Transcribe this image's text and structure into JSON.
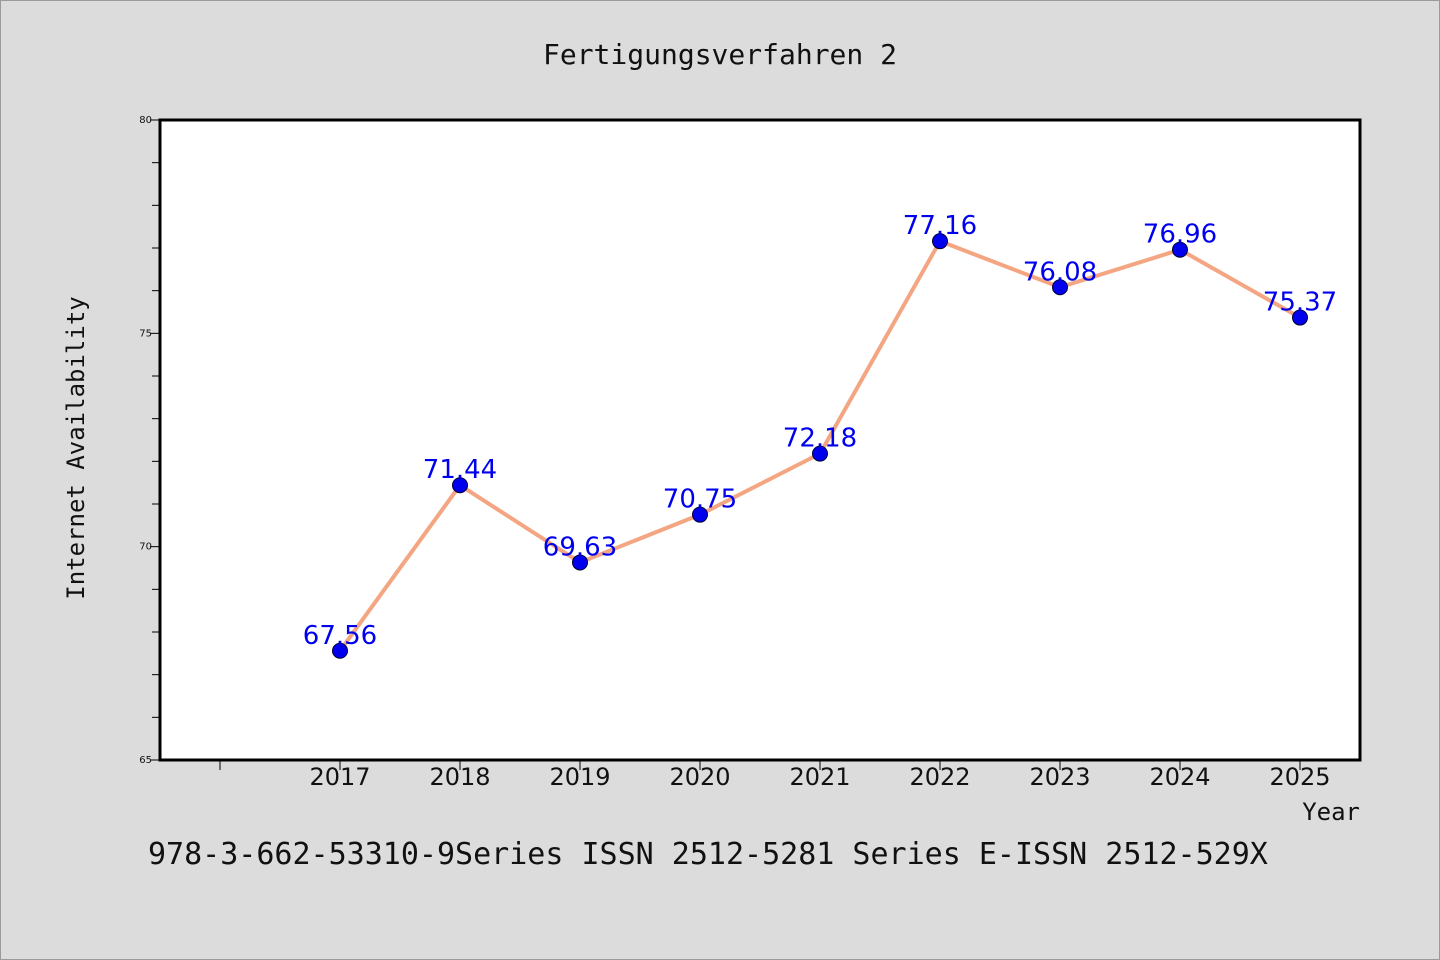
{
  "chart_data": {
    "type": "line",
    "title": "Fertigungsverfahren 2",
    "xlabel": "Year",
    "ylabel": "Internet Availability",
    "categories": [
      "2017",
      "2018",
      "2019",
      "2020",
      "2021",
      "2022",
      "2023",
      "2024",
      "2025"
    ],
    "series": [
      {
        "values": [
          67.56,
          71.44,
          69.63,
          70.75,
          72.18,
          77.16,
          76.08,
          76.96,
          75.37
        ],
        "data_labels": [
          "67.56",
          "71.44",
          "69.63",
          "70.75",
          "72.18",
          "77.16",
          "76.08",
          "76.96",
          "75.37"
        ],
        "line_color": "#f4a582",
        "marker_color": "#0000ee",
        "label_color": "#0000ee"
      }
    ],
    "y_ticks": [
      "65",
      "70",
      "75",
      "80"
    ],
    "ylim": [
      65,
      80
    ],
    "grid": false,
    "legend": "none"
  },
  "footnote": "978-3-662-53310-9Series ISSN 2512-5281 Series E-ISSN 2512-529X"
}
